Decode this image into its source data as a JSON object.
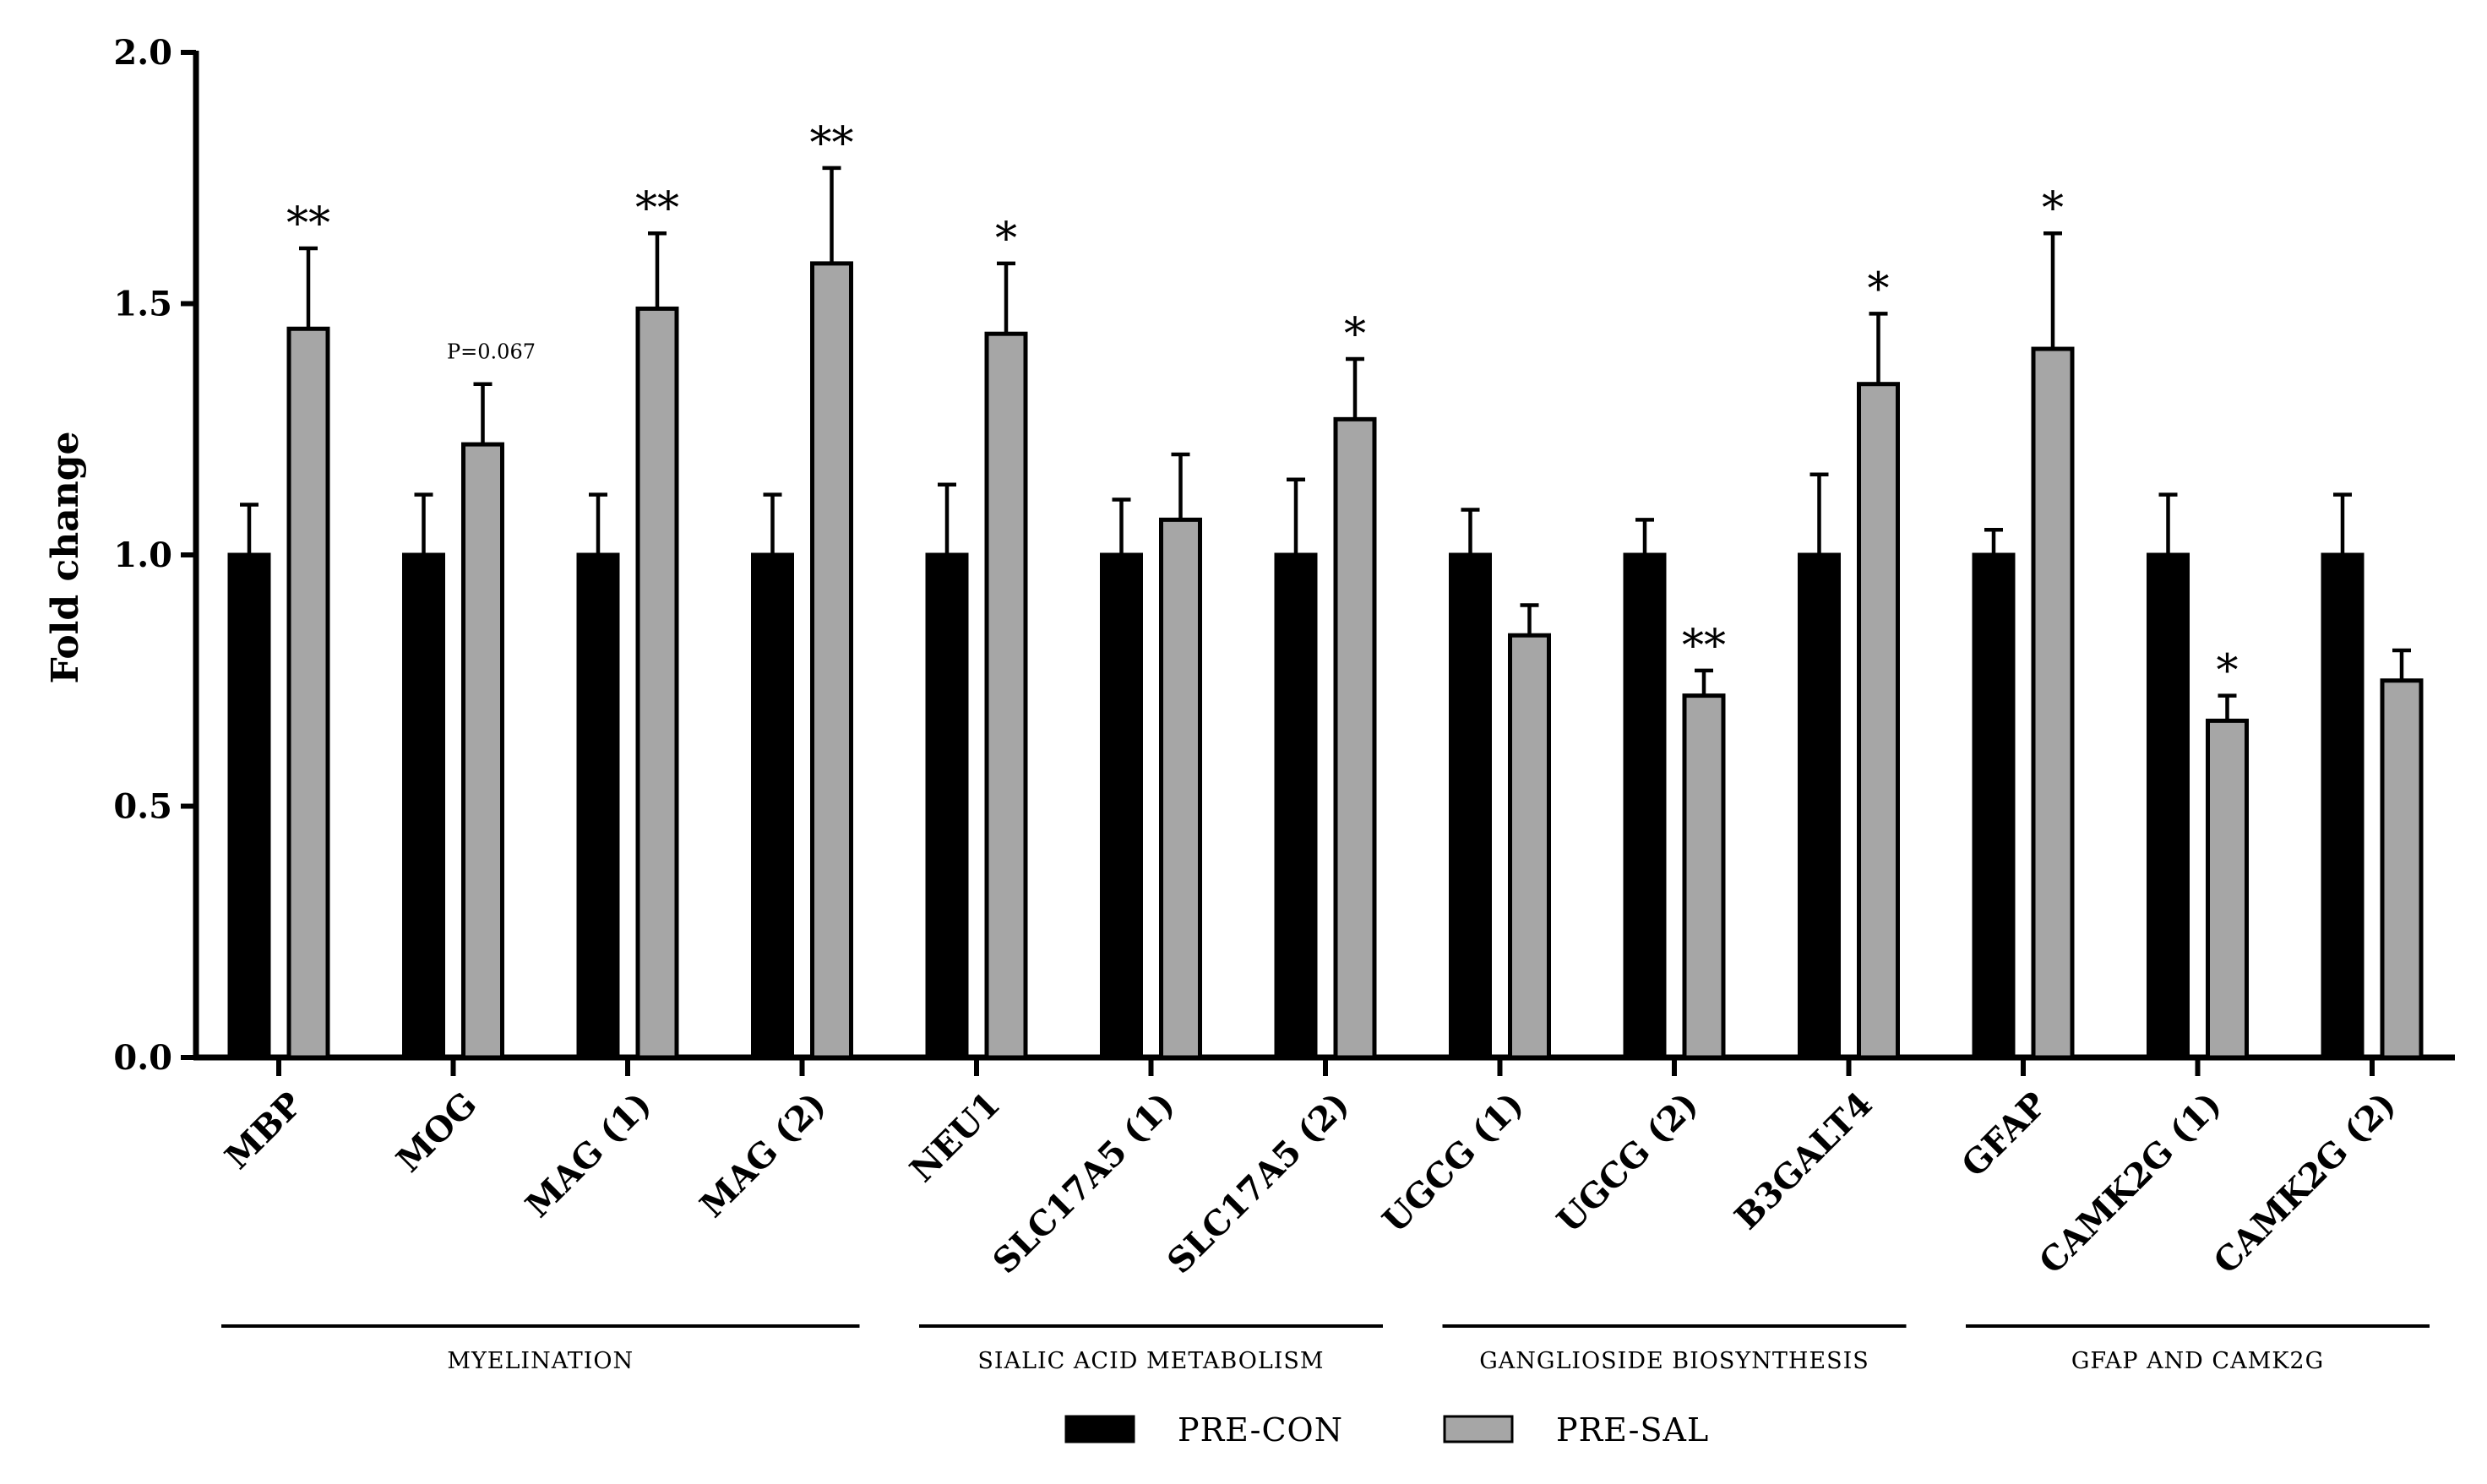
{
  "chart_data": {
    "type": "bar",
    "title": "",
    "xlabel": "",
    "ylabel": "Fold change",
    "ylim": [
      0,
      2.0
    ],
    "yticks": [
      "0.0",
      "0.5",
      "1.0",
      "1.5",
      "2.0"
    ],
    "grid": false,
    "categories": [
      "MBP",
      "MOG",
      "MAG (1)",
      "MAG (2)",
      "NEU1",
      "SLC17A5 (1)",
      "SLC17A5 (2)",
      "UGCG (1)",
      "UGCG (2)",
      "B3GALT4",
      "GFAP",
      "CAMK2G (1)",
      "CAMK2G (2)"
    ],
    "series": [
      {
        "name": "PRE-CON",
        "color": "#000000",
        "values": [
          1.0,
          1.0,
          1.0,
          1.0,
          1.0,
          1.0,
          1.0,
          1.0,
          1.0,
          1.0,
          1.0,
          1.0,
          1.0
        ],
        "errors": [
          0.1,
          0.12,
          0.12,
          0.12,
          0.14,
          0.11,
          0.15,
          0.09,
          0.07,
          0.16,
          0.05,
          0.12,
          0.12
        ]
      },
      {
        "name": "PRE-SAL",
        "color": "#a6a6a6",
        "values": [
          1.45,
          1.22,
          1.49,
          1.58,
          1.44,
          1.07,
          1.27,
          0.84,
          0.72,
          1.34,
          1.41,
          0.67,
          0.75
        ],
        "errors": [
          0.16,
          0.12,
          0.15,
          0.19,
          0.14,
          0.13,
          0.12,
          0.06,
          0.05,
          0.14,
          0.23,
          0.05,
          0.06
        ]
      }
    ],
    "significance": [
      "**",
      "P=0.067",
      "**",
      "**",
      "*",
      "",
      "*",
      "",
      "**",
      "*",
      "*",
      "*",
      ""
    ],
    "groups": [
      {
        "label": "MYELINATION",
        "start": 0,
        "end": 3
      },
      {
        "label": "SIALIC ACID METABOLISM",
        "start": 4,
        "end": 6
      },
      {
        "label": "GANGLIOSIDE BIOSYNTHESIS",
        "start": 7,
        "end": 9
      },
      {
        "label": "GFAP AND CAMK2G",
        "start": 10,
        "end": 12
      }
    ],
    "legend": {
      "position": "bottom-center",
      "entries": [
        "PRE-CON",
        "PRE-SAL"
      ]
    }
  }
}
